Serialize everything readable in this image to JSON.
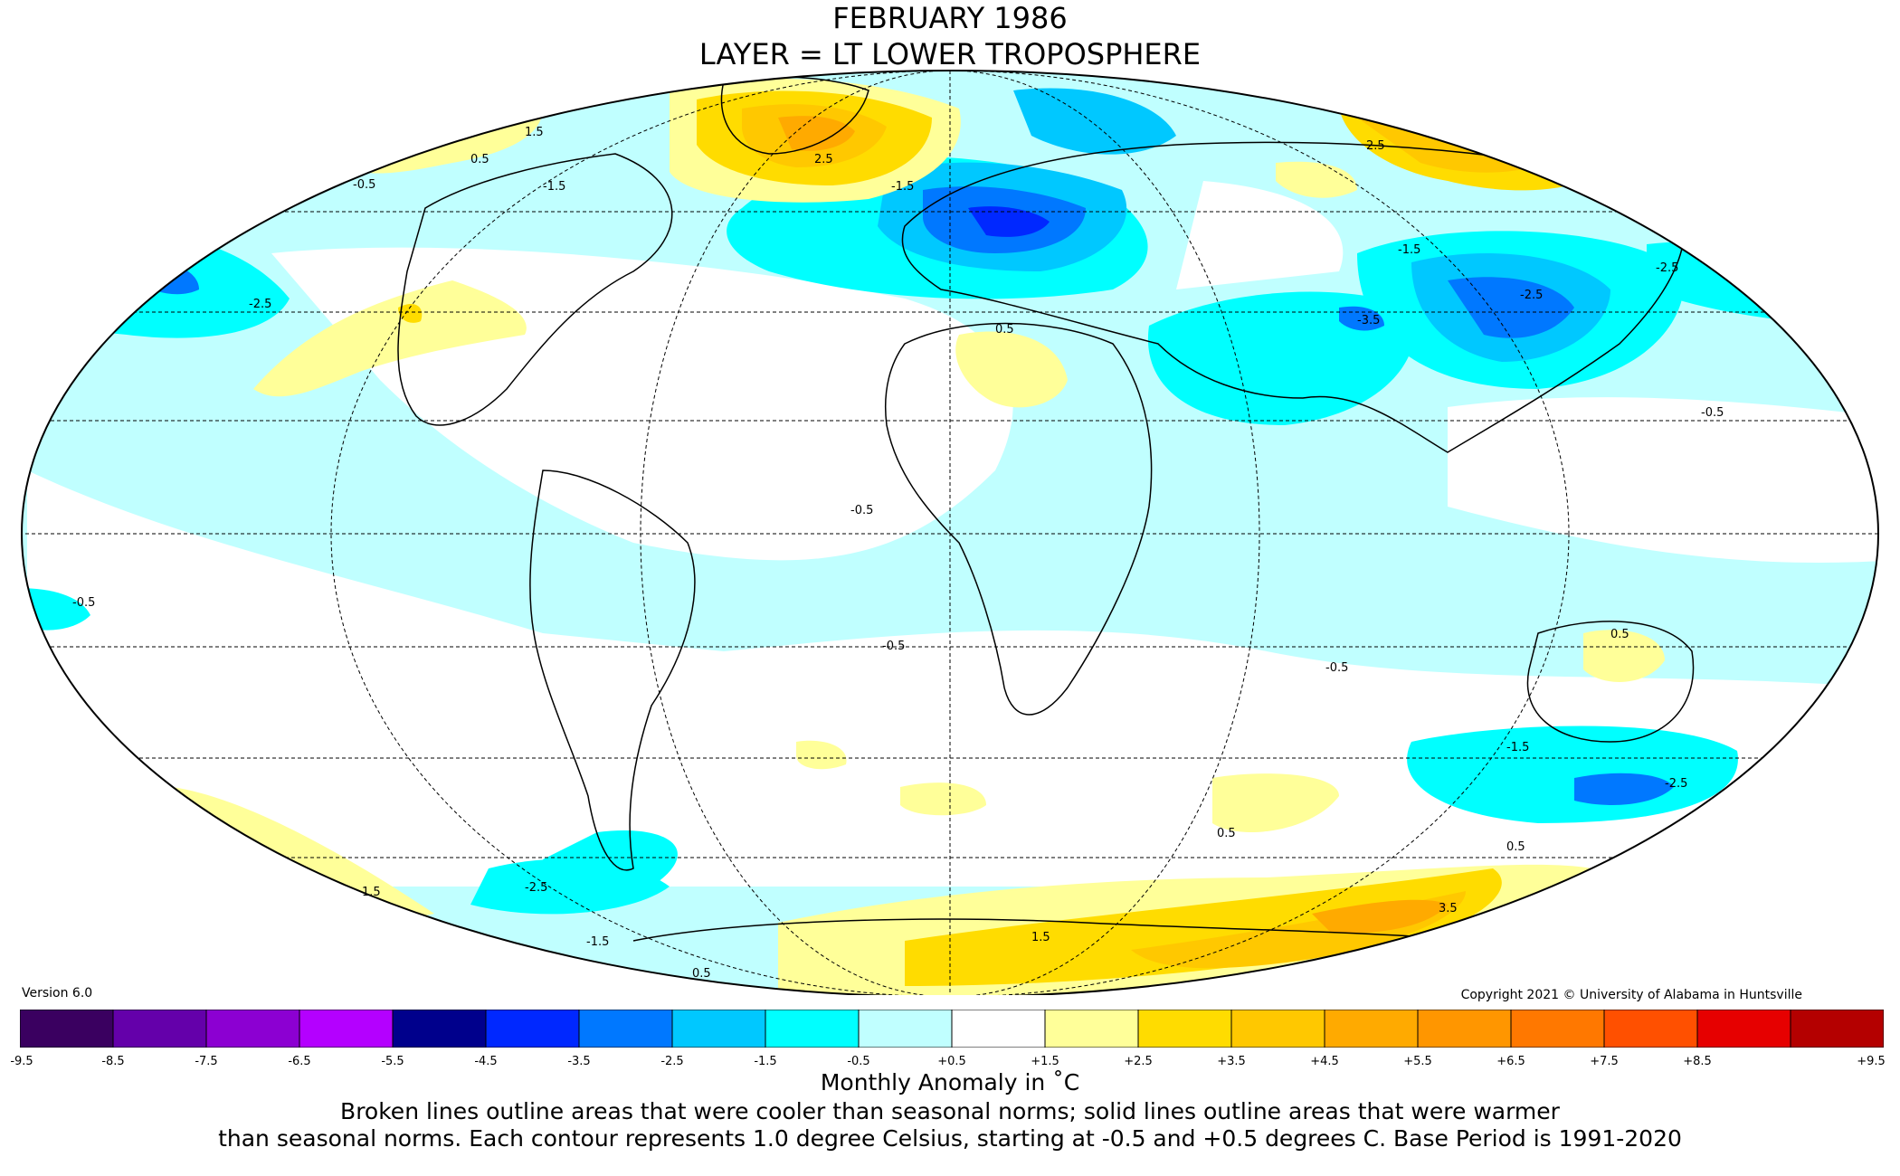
{
  "title": {
    "line1": "FEBRUARY 1986",
    "line2": "LAYER = LT LOWER TROPOSPHERE"
  },
  "version": "Version 6.0",
  "copyright": "Copyright 2021 © University of Alabama in Huntsville",
  "legend": {
    "colors": [
      "#3a0060",
      "#6400aa",
      "#8c00d2",
      "#b400ff",
      "#00008c",
      "#0028ff",
      "#0078ff",
      "#00c8ff",
      "#00ffff",
      "#c0ffff",
      "#ffffff",
      "#ffff99",
      "#ffdc00",
      "#ffc800",
      "#ffaa00",
      "#ff9600",
      "#ff7800",
      "#ff5000",
      "#e60000",
      "#b40000"
    ],
    "ticks": [
      "-9.5",
      "-8.5",
      "-7.5",
      "-6.5",
      "-5.5",
      "-4.5",
      "-3.5",
      "-2.5",
      "-1.5",
      "-0.5",
      "+0.5",
      "+1.5",
      "+2.5",
      "+3.5",
      "+4.5",
      "+5.5",
      "+6.5",
      "+7.5",
      "+8.5",
      "+9.5"
    ]
  },
  "contour_labels": [
    "-0.5",
    "-1.5",
    "-2.5",
    "-3.5",
    "0.5",
    "1.5",
    "2.5",
    "3.5"
  ],
  "units": "Monthly Anomaly in ˚C",
  "note": {
    "line1": "Broken lines outline areas that were cooler than seasonal norms; solid lines outline areas that were warmer",
    "line2": "than seasonal norms. Each contour represents 1.0 degree Celsius, starting at -0.5 and +0.5 degrees C. Base Period is 1991-2020"
  }
}
